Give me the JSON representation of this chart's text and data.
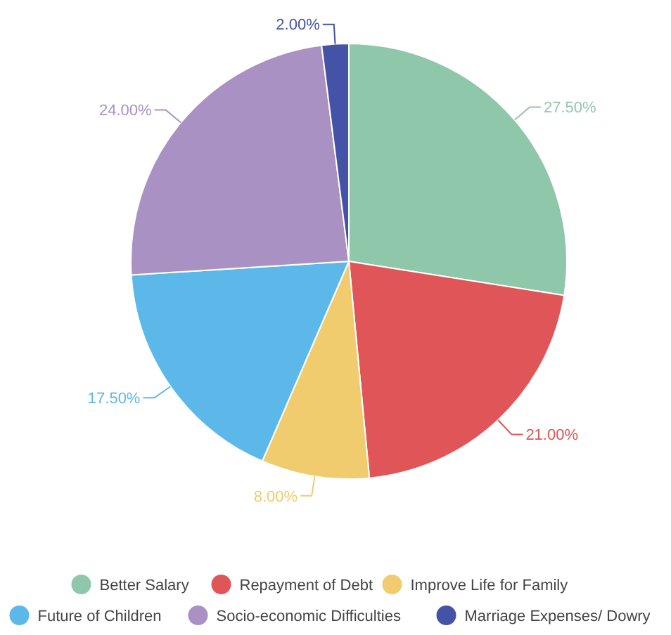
{
  "chart_data": {
    "type": "pie",
    "categories": [
      "Better Salary",
      "Repayment of Debt",
      "Improve Life for Family",
      "Future of Children",
      "Socio-economic Difficulties",
      "Marriage Expenses/ Dowry"
    ],
    "values": [
      27.5,
      21,
      8,
      17.5,
      24,
      2
    ],
    "colors": [
      "#8fc7ab",
      "#e05558",
      "#f0cc6e",
      "#5cb8e8",
      "#a991c3",
      "#4453a6"
    ],
    "value_labels": [
      "27.50%",
      "21.00%",
      "8.00%",
      "17.50%",
      "24.00%",
      "2.00%"
    ],
    "legend": "bottom"
  }
}
